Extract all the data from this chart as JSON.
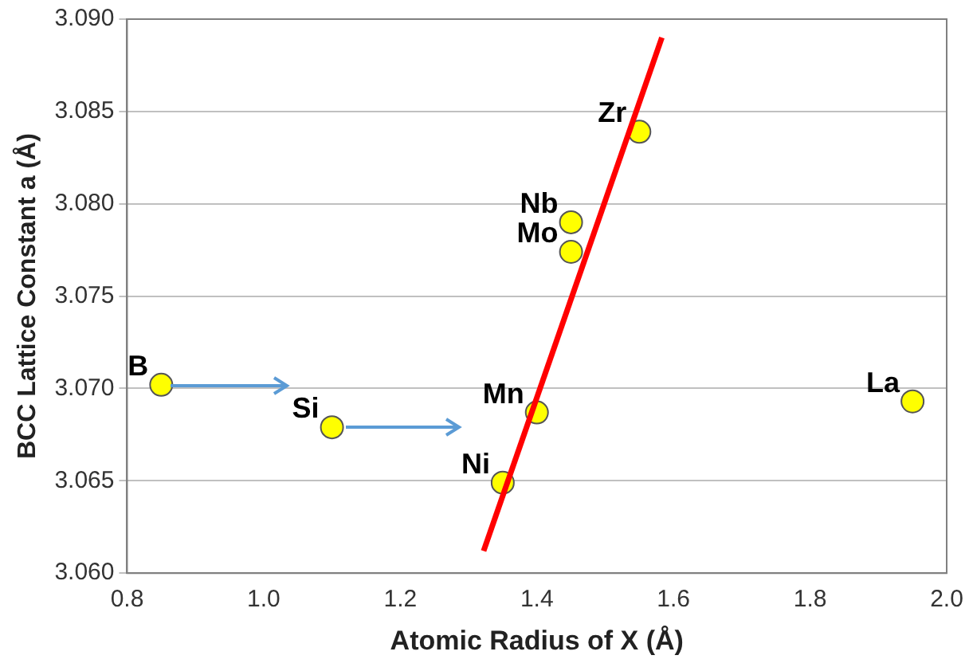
{
  "chart_data": {
    "type": "scatter",
    "xlabel": "Atomic Radius of X (Å)",
    "ylabel": "BCC Lattice Constant a (Å)",
    "xlim": [
      0.8,
      2.0
    ],
    "xticks": [
      0.8,
      {
        "value": 1.0,
        "label": "1.0"
      },
      1.2,
      1.4,
      1.6,
      1.8,
      {
        "value": 2.0,
        "label": "2.0"
      }
    ],
    "ylim": [
      3.06,
      3.09
    ],
    "yticks": [
      {
        "value": 3.06,
        "label": "3.060"
      },
      {
        "value": 3.065,
        "label": "3.065"
      },
      {
        "value": 3.07,
        "label": "3.070"
      },
      {
        "value": 3.075,
        "label": "3.075"
      },
      {
        "value": 3.08,
        "label": "3.080"
      },
      {
        "value": 3.085,
        "label": "3.085"
      },
      {
        "value": 3.09,
        "label": "3.090"
      }
    ],
    "grid": "y",
    "legend": false,
    "series": [
      {
        "type": "line",
        "color": "#ff0000",
        "x": [
          1.322,
          1.583
        ],
        "values": [
          3.0612,
          3.089
        ],
        "marker": "none"
      },
      {
        "color": "#ffff00",
        "x": [
          0.85,
          1.1,
          1.35,
          1.4,
          1.45,
          1.45,
          1.55,
          1.95
        ],
        "values": [
          3.0702,
          3.0679,
          3.0649,
          3.0687,
          3.0774,
          3.079,
          3.0839,
          3.0693
        ],
        "marker": "circle"
      }
    ],
    "annotations": [
      {
        "text": "B",
        "x": 0.85,
        "y": 3.0702
      },
      {
        "text": "Si",
        "x": 1.1,
        "y": 3.0679
      },
      {
        "text": "Ni",
        "x": 1.35,
        "y": 3.0649
      },
      {
        "text": "Mn",
        "x": 1.4,
        "y": 3.0687
      },
      {
        "text": "Mo",
        "x": 1.45,
        "y": 3.0774
      },
      {
        "text": "Nb",
        "x": 1.45,
        "y": 3.079
      },
      {
        "text": "Zr",
        "x": 1.55,
        "y": 3.0839
      },
      {
        "text": "La",
        "x": 1.95,
        "y": 3.0693
      }
    ]
  }
}
